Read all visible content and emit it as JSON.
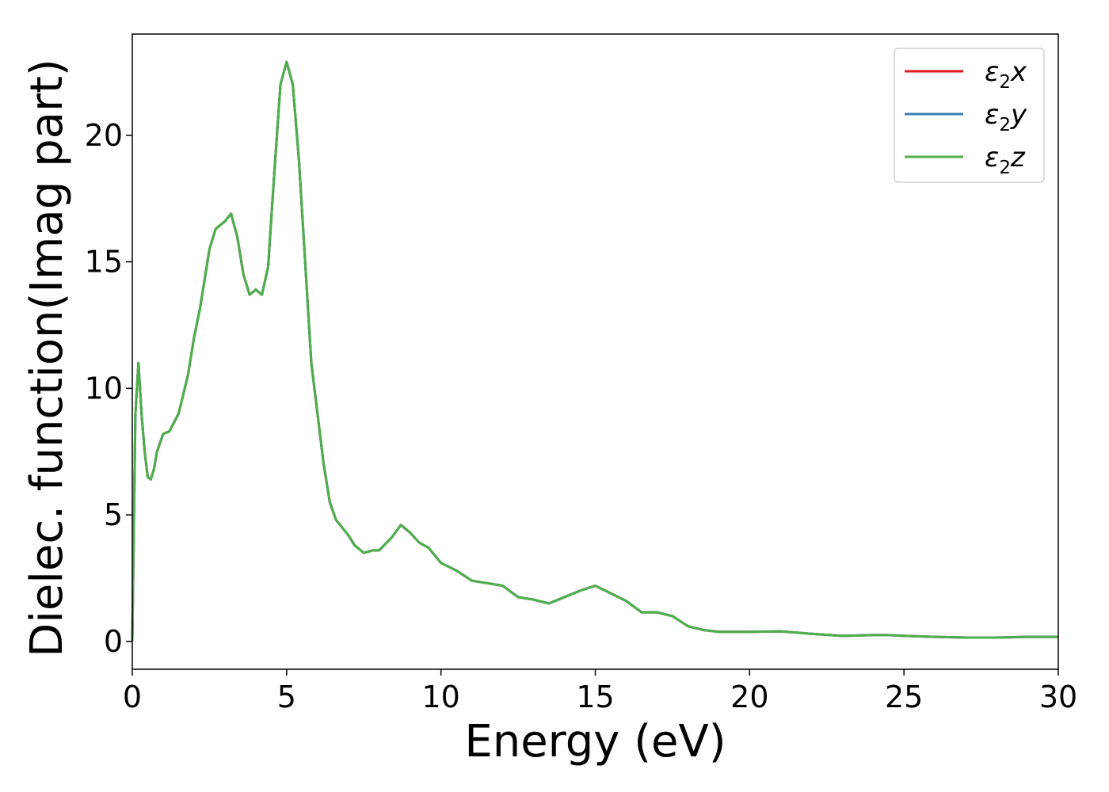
{
  "chart_data": {
    "type": "line",
    "title": "",
    "xlabel": "Energy (eV)",
    "ylabel": "Dielec. function(Imag part)",
    "xlim": [
      0,
      30
    ],
    "ylim": [
      -1.1,
      24
    ],
    "xticks": [
      0,
      5,
      10,
      15,
      20,
      25,
      30
    ],
    "xtick_labels": [
      "0",
      "5",
      "10",
      "15",
      "20",
      "25",
      "30"
    ],
    "yticks": [
      0,
      5,
      10,
      15,
      20
    ],
    "ytick_labels": [
      "0",
      "5",
      "10",
      "15",
      "20"
    ],
    "grid": false,
    "legend_position": "top-right",
    "x": [
      0,
      0.05,
      0.1,
      0.2,
      0.3,
      0.4,
      0.5,
      0.6,
      0.7,
      0.8,
      1.0,
      1.2,
      1.5,
      1.8,
      2.0,
      2.2,
      2.5,
      2.7,
      3.0,
      3.2,
      3.4,
      3.6,
      3.8,
      4.0,
      4.2,
      4.4,
      4.6,
      4.8,
      5.0,
      5.2,
      5.4,
      5.6,
      5.8,
      6.0,
      6.2,
      6.4,
      6.6,
      7.0,
      7.2,
      7.5,
      7.8,
      8.0,
      8.4,
      8.7,
      9.0,
      9.3,
      9.6,
      10.0,
      10.5,
      11.0,
      12.0,
      12.5,
      13.0,
      13.5,
      14.0,
      14.5,
      15.0,
      15.5,
      16.0,
      16.5,
      17.0,
      17.5,
      18.0,
      18.5,
      19.0,
      20.0,
      21.0,
      22.0,
      23.0,
      24.0,
      24.5,
      25.0,
      26.0,
      27.0,
      28.0,
      29.0,
      30.0
    ],
    "series": [
      {
        "name": "ε2x",
        "color": "#e41a1c",
        "values": [
          0,
          4.5,
          9.0,
          11.0,
          9.0,
          7.5,
          6.5,
          6.4,
          6.8,
          7.5,
          8.2,
          8.3,
          9.0,
          10.5,
          12.0,
          13.2,
          15.5,
          16.3,
          16.6,
          16.9,
          16.0,
          14.5,
          13.7,
          13.9,
          13.7,
          14.8,
          18.5,
          22.0,
          22.9,
          22.0,
          19.0,
          15.0,
          11.0,
          9.0,
          7.0,
          5.5,
          4.8,
          4.2,
          3.8,
          3.5,
          3.6,
          3.6,
          4.1,
          4.6,
          4.3,
          3.9,
          3.7,
          3.1,
          2.8,
          2.4,
          2.2,
          1.75,
          1.65,
          1.5,
          1.75,
          2.0,
          2.2,
          1.9,
          1.6,
          1.15,
          1.15,
          1.0,
          0.6,
          0.45,
          0.38,
          0.38,
          0.4,
          0.3,
          0.22,
          0.25,
          0.25,
          0.22,
          0.18,
          0.15,
          0.15,
          0.18,
          0.18
        ]
      },
      {
        "name": "ε2y",
        "color": "#377eb8",
        "values": [
          0,
          4.5,
          9.0,
          11.0,
          9.0,
          7.5,
          6.5,
          6.4,
          6.8,
          7.5,
          8.2,
          8.3,
          9.0,
          10.5,
          12.0,
          13.2,
          15.5,
          16.3,
          16.6,
          16.9,
          16.0,
          14.5,
          13.7,
          13.9,
          13.7,
          14.8,
          18.5,
          22.0,
          22.9,
          22.0,
          19.0,
          15.0,
          11.0,
          9.0,
          7.0,
          5.5,
          4.8,
          4.2,
          3.8,
          3.5,
          3.6,
          3.6,
          4.1,
          4.6,
          4.3,
          3.9,
          3.7,
          3.1,
          2.8,
          2.4,
          2.2,
          1.75,
          1.65,
          1.5,
          1.75,
          2.0,
          2.2,
          1.9,
          1.6,
          1.15,
          1.15,
          1.0,
          0.6,
          0.45,
          0.38,
          0.38,
          0.4,
          0.3,
          0.22,
          0.25,
          0.25,
          0.22,
          0.18,
          0.15,
          0.15,
          0.18,
          0.18
        ]
      },
      {
        "name": "ε2z",
        "color": "#4daf4a",
        "values": [
          0,
          4.5,
          9.0,
          11.0,
          9.0,
          7.5,
          6.5,
          6.4,
          6.8,
          7.5,
          8.2,
          8.3,
          9.0,
          10.5,
          12.0,
          13.2,
          15.5,
          16.3,
          16.6,
          16.9,
          16.0,
          14.5,
          13.7,
          13.9,
          13.7,
          14.8,
          18.5,
          22.0,
          22.9,
          22.0,
          19.0,
          15.0,
          11.0,
          9.0,
          7.0,
          5.5,
          4.8,
          4.2,
          3.8,
          3.5,
          3.6,
          3.6,
          4.1,
          4.6,
          4.3,
          3.9,
          3.7,
          3.1,
          2.8,
          2.4,
          2.2,
          1.75,
          1.65,
          1.5,
          1.75,
          2.0,
          2.2,
          1.9,
          1.6,
          1.15,
          1.15,
          1.0,
          0.6,
          0.45,
          0.38,
          0.38,
          0.4,
          0.3,
          0.22,
          0.25,
          0.25,
          0.22,
          0.18,
          0.15,
          0.15,
          0.18,
          0.18
        ]
      }
    ],
    "legend": [
      {
        "base": "ε",
        "sub": "2",
        "axis": "x"
      },
      {
        "base": "ε",
        "sub": "2",
        "axis": "y"
      },
      {
        "base": "ε",
        "sub": "2",
        "axis": "z"
      }
    ]
  }
}
